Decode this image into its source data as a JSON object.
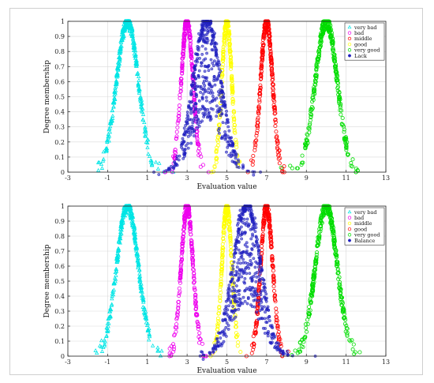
{
  "chart_data": [
    {
      "type": "scatter",
      "title": "",
      "xlabel": "Evaluation value",
      "ylabel": "Degree membership",
      "xlim": [
        -3,
        13
      ],
      "ylim": [
        0,
        1
      ],
      "xticks": [
        "-3",
        "-1",
        "1",
        "3",
        "5",
        "7",
        "9",
        "11",
        "13"
      ],
      "yticks": [
        "0",
        "0.1",
        "0.2",
        "0.3",
        "0.4",
        "0.5",
        "0.6",
        "0.7",
        "0.8",
        "0.9",
        "1"
      ],
      "grid": true,
      "legend_position": "top-right",
      "series": [
        {
          "name": "very bad",
          "color": "#00e5e5",
          "marker": "triangle",
          "center": 0,
          "spread": 0.55,
          "n": 340
        },
        {
          "name": "bad",
          "color": "#ee00ee",
          "marker": "circle",
          "center": 3,
          "spread": 0.3,
          "n": 280
        },
        {
          "name": "middle",
          "color": "#ff0000",
          "marker": "circle",
          "center": 7,
          "spread": 0.3,
          "n": 280
        },
        {
          "name": "good",
          "color": "#ffff00",
          "marker": "circle",
          "center": 5,
          "spread": 0.25,
          "n": 240
        },
        {
          "name": "very good",
          "color": "#00dd00",
          "marker": "circle",
          "center": 10,
          "spread": 0.55,
          "n": 340
        },
        {
          "name": "Lack",
          "color": "#1f1fbf",
          "marker": "dot",
          "center": 4,
          "spread": 0.7,
          "n": 520,
          "wide": true
        }
      ]
    },
    {
      "type": "scatter",
      "title": "",
      "xlabel": "Evaluation value",
      "ylabel": "Degree membership",
      "xlim": [
        -3,
        13
      ],
      "ylim": [
        0,
        1
      ],
      "xticks": [
        "-3",
        "-1",
        "1",
        "3",
        "5",
        "7",
        "9",
        "11",
        "13"
      ],
      "yticks": [
        "0",
        "0.1",
        "0.2",
        "0.3",
        "0.4",
        "0.5",
        "0.6",
        "0.7",
        "0.8",
        "0.9",
        "1"
      ],
      "grid": true,
      "legend_position": "top-right",
      "series": [
        {
          "name": "very bad",
          "color": "#00e5e5",
          "marker": "triangle",
          "center": 0,
          "spread": 0.55,
          "n": 340
        },
        {
          "name": "bad",
          "color": "#ee00ee",
          "marker": "circle",
          "center": 3,
          "spread": 0.3,
          "n": 280
        },
        {
          "name": "middle",
          "color": "#ffff00",
          "marker": "circle",
          "center": 5,
          "spread": 0.25,
          "n": 240
        },
        {
          "name": "good",
          "color": "#ff0000",
          "marker": "circle",
          "center": 7,
          "spread": 0.3,
          "n": 280
        },
        {
          "name": "very good",
          "color": "#00dd00",
          "marker": "circle",
          "center": 10,
          "spread": 0.55,
          "n": 340
        },
        {
          "name": "Balance",
          "color": "#1f1fbf",
          "marker": "dot",
          "center": 6,
          "spread": 0.7,
          "n": 520,
          "wide": true
        }
      ]
    }
  ]
}
